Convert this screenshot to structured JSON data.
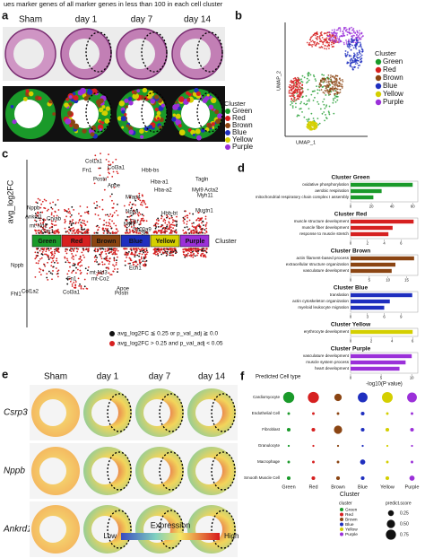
{
  "top_caption": "ues marker genes of all marker genes in less than 100 in each cell cluster",
  "clusters": [
    {
      "name": "Green",
      "color": "#1a9a2a"
    },
    {
      "name": "Red",
      "color": "#d62020"
    },
    {
      "name": "Brown",
      "color": "#8b4513"
    },
    {
      "name": "Blue",
      "color": "#1f2fbf"
    },
    {
      "name": "Yellow",
      "color": "#d4cf00"
    },
    {
      "name": "Purple",
      "color": "#9b30d9"
    }
  ],
  "panel_a": {
    "label": "a",
    "columns": [
      "Sham",
      "day 1",
      "day 7",
      "day 14"
    ],
    "legend_title": "Cluster"
  },
  "panel_b": {
    "label": "b",
    "xlabel": "UMAP_1",
    "ylabel": "UMAP_2",
    "legend_title": "Cluster"
  },
  "panel_c": {
    "label": "c",
    "ylabel": "avg_log2FC",
    "xlabel": "Cluster",
    "genes": [
      "Hbb-bs",
      "Hba-a2",
      "Hba-a1",
      "Col1a1",
      "Fn1",
      "Col3a1",
      "Postn",
      "Apoe",
      "Mfap4",
      "Nppa",
      "Clu",
      "Myl7",
      "S100a9",
      "Sln",
      "Hbb-bt",
      "Tagln",
      "Myl9",
      "Acta2",
      "Myh11",
      "Mustn1",
      "Nppb",
      "Ankrd1",
      "Cryab",
      "mt-Nd1",
      "Cox1",
      "Ech1",
      "mt-Nd3",
      "mt-Co2",
      "Col1a2",
      "Apoe",
      "Postn",
      "Fn1",
      "Col3a1",
      "Nppb",
      "Fhl1"
    ],
    "legend": [
      "avg_log2FC ≦ 0.25 or p_val_adj ≧ 0.0",
      "avg_log2FC > 0.25 and p_val_adj < 0.05"
    ]
  },
  "panel_d": {
    "label": "d",
    "xlabel": "-log10(P value)",
    "groups": [
      {
        "title": "Cluster Green",
        "terms": [
          "oxidative phosphorylation",
          "aerobic respiration",
          "mitochondrial respiratory chain complex I assembly"
        ],
        "values": [
          60,
          30,
          22
        ],
        "xlim": [
          0,
          65
        ],
        "xticks": [
          0,
          20,
          40,
          60
        ]
      },
      {
        "title": "Cluster Red",
        "terms": [
          "muscle structure development",
          "muscle fiber development",
          "response to muscle stretch"
        ],
        "values": [
          7.5,
          5,
          4.5
        ],
        "xlim": [
          0,
          8
        ],
        "xticks": [
          0,
          2,
          4,
          6
        ]
      },
      {
        "title": "Cluster Brown",
        "terms": [
          "actin filament-based process",
          "extracellular structure organization",
          "vasculature development"
        ],
        "values": [
          17,
          12,
          11
        ],
        "xlim": [
          0,
          18
        ],
        "xticks": [
          0,
          5,
          10,
          15
        ]
      },
      {
        "title": "Cluster Blue",
        "terms": [
          "translation",
          "actin cytoskeleton organization",
          "myeloid leukocyte migration"
        ],
        "values": [
          11,
          7,
          6
        ],
        "xlim": [
          0,
          12
        ],
        "xticks": [
          0,
          3,
          6,
          9
        ]
      },
      {
        "title": "Cluster Yellow",
        "terms": [
          "erythrocyte development"
        ],
        "values": [
          6
        ],
        "xlim": [
          0,
          6.5
        ],
        "xticks": [
          0,
          2,
          4,
          6
        ]
      },
      {
        "title": "Cluster Purple",
        "terms": [
          "vasculature development",
          "muscle system process",
          "heart development"
        ],
        "values": [
          10,
          9,
          8
        ],
        "xlim": [
          0,
          11
        ],
        "xticks": [
          0,
          5,
          10
        ]
      }
    ]
  },
  "panel_e": {
    "label": "e",
    "columns": [
      "Sham",
      "day 1",
      "day 7",
      "day 14"
    ],
    "rows": [
      "Csrp3",
      "Nppb",
      "Ankrd1"
    ],
    "legend_title": "Expression",
    "low": "Low",
    "high": "High"
  },
  "panel_f": {
    "label": "f",
    "ylabel": "Predicted Cell type",
    "xlabel": "Cluster",
    "rows": [
      "Cardiomyocyte",
      "Endothelial Cell",
      "Fibroblast",
      "Granulocyte",
      "Macrophage",
      "Smooth Muscle Cell"
    ],
    "scores": [
      [
        0.9,
        0.9,
        0.4,
        0.7,
        0.85,
        0.7
      ],
      [
        0.05,
        0.05,
        0.05,
        0.1,
        0.05,
        0.05
      ],
      [
        0.1,
        0.1,
        0.5,
        0.1,
        0.1,
        0.1
      ],
      [
        0.03,
        0.03,
        0.03,
        0.03,
        0.03,
        0.03
      ],
      [
        0.05,
        0.05,
        0.05,
        0.2,
        0.05,
        0.05
      ],
      [
        0.1,
        0.1,
        0.1,
        0.1,
        0.1,
        0.2
      ]
    ],
    "legend_cluster_title": "cluster",
    "legend_size_title": "predict.score",
    "size_ticks": [
      0.25,
      {
        "value": 0.5,
        "label": "0.50"
      },
      0.75
    ]
  }
}
